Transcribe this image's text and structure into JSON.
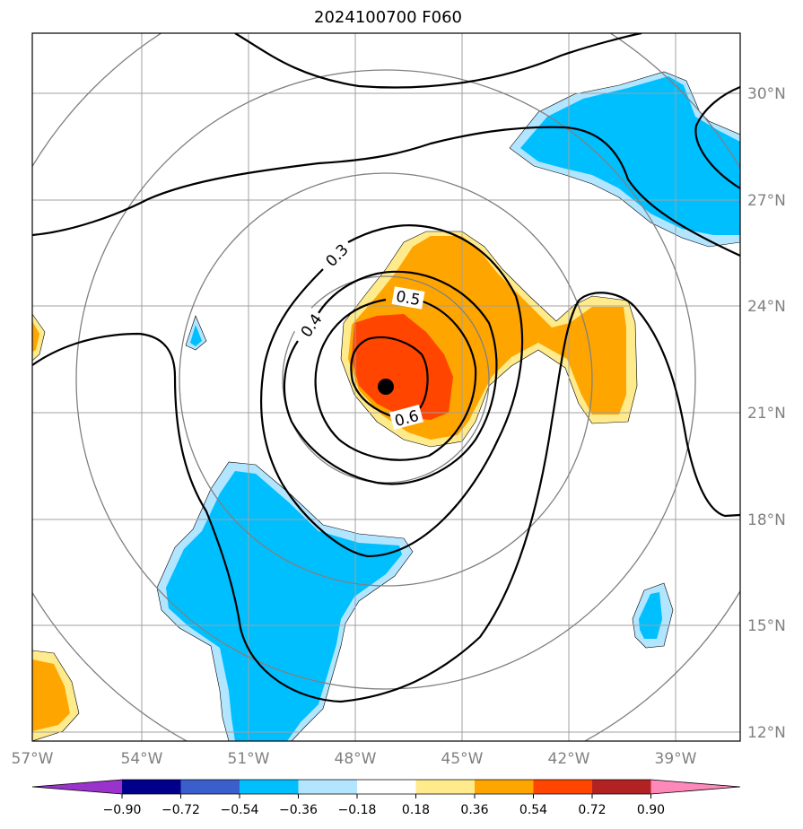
{
  "title": "2024100700 F060",
  "lon_labels": [
    "57°W",
    "54°W",
    "51°W",
    "48°W",
    "45°W",
    "42°W",
    "39°W"
  ],
  "lat_labels": [
    "30°N",
    "27°N",
    "24°N",
    "21°N",
    "18°N",
    "15°N",
    "12°N"
  ],
  "contour_labels": [
    "0.3",
    "0.4",
    "0.5",
    "0.6"
  ],
  "colorbar": {
    "tick_labels": [
      "−0.90",
      "−0.72",
      "−0.54",
      "−0.36",
      "−0.18",
      "0.18",
      "0.36",
      "0.54",
      "0.72",
      "0.90"
    ],
    "colors": [
      "#9933cc",
      "#00008b",
      "#3a5fcd",
      "#00bfff",
      "#b2e5ff",
      "#ffffff",
      "#ffeb8b",
      "#ffa500",
      "#ff4500",
      "#b22222",
      "#ff88bb"
    ]
  },
  "colors": {
    "grid": "#a0a0a0",
    "range_rings": "#808080",
    "positive_fill_outer": "#ffeb8b",
    "positive_fill_mid": "#ffa500",
    "positive_fill_inner": "#ff4500",
    "negative_fill_outer": "#b2e5ff",
    "negative_fill_inner": "#00bfff"
  },
  "center_marker": "storm-center"
}
